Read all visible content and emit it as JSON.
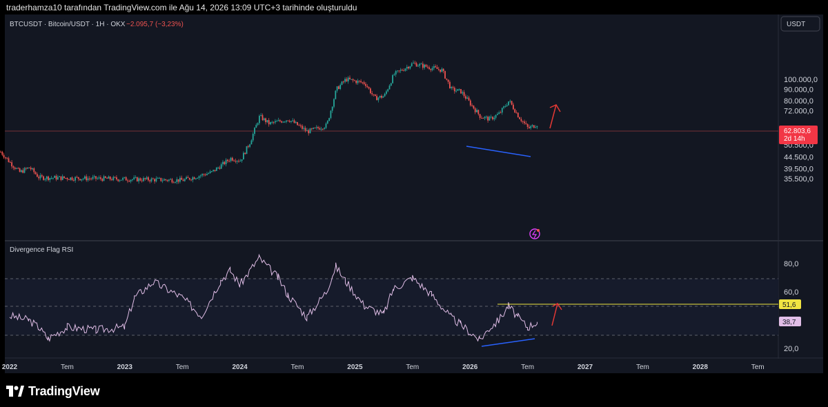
{
  "header": {
    "attribution": "traderhamza10 tarafından TradingView.com ile Ağu 14, 2026 13:09 UTC+3 tarihinde oluşturuldu"
  },
  "chart": {
    "symbol_line": "BTCUSDT · Bitcoin/USDT · 1H · OKX",
    "change": "−2.095,7 (−3,23%)",
    "currency_button": "USDT",
    "price_badge": "62.803,6",
    "countdown": "2d 14h",
    "rsi_title": "Divergence Flag RSI",
    "rsi_badge_yellow": "51,6",
    "rsi_badge_pink": "38,7"
  },
  "footer": {
    "brand": "TradingView"
  },
  "colors": {
    "up": "#26a69a",
    "down": "#ef5350",
    "rsi_line": "#e1bee7",
    "divergence_line": "#2962ff",
    "arrow": "#e53935",
    "level_line": "#f0e442"
  },
  "chart_data": [
    {
      "type": "candlestick",
      "title": "BTCUSDT · Bitcoin/USDT · 1H · OKX",
      "y_scale": "log",
      "y_tick_labels": [
        "100.000,0",
        "90.000,0",
        "80.000,0",
        "72.000,0",
        "56.500,0",
        "50.500,0",
        "44.500,0",
        "39.500,0",
        "35.500,0"
      ],
      "ylim": [
        33500,
        120000
      ],
      "last_price": 62803.6,
      "x_ticks": [
        "2022",
        "Tem",
        "2023",
        "Tem",
        "2024",
        "Tem",
        "2025",
        "Tem",
        "2026",
        "Tem",
        "2027",
        "Tem",
        "2028",
        "Tem"
      ],
      "approx_close_path": [
        {
          "x": "2021-12",
          "y": 47000
        },
        {
          "x": "2022-01",
          "y": 42000
        },
        {
          "x": "2022-02",
          "y": 38000
        },
        {
          "x": "2022-03",
          "y": 40000
        },
        {
          "x": "2022-04",
          "y": 36000
        },
        {
          "x": "2023-07",
          "y": 35000
        },
        {
          "x": "2023-10",
          "y": 38000
        },
        {
          "x": "2023-12",
          "y": 44000
        },
        {
          "x": "2024-01",
          "y": 43000
        },
        {
          "x": "2024-02",
          "y": 52000
        },
        {
          "x": "2024-03",
          "y": 68000
        },
        {
          "x": "2024-04",
          "y": 63000
        },
        {
          "x": "2024-06",
          "y": 66000
        },
        {
          "x": "2024-08",
          "y": 58000
        },
        {
          "x": "2024-10",
          "y": 62000
        },
        {
          "x": "2024-11",
          "y": 90000
        },
        {
          "x": "2024-12",
          "y": 100000
        },
        {
          "x": "2025-02",
          "y": 96000
        },
        {
          "x": "2025-03",
          "y": 82000
        },
        {
          "x": "2025-04",
          "y": 84000
        },
        {
          "x": "2025-05",
          "y": 105000
        },
        {
          "x": "2025-07",
          "y": 118000
        },
        {
          "x": "2025-08",
          "y": 115000
        },
        {
          "x": "2025-10",
          "y": 110000
        },
        {
          "x": "2025-11",
          "y": 90000
        },
        {
          "x": "2025-12",
          "y": 88000
        },
        {
          "x": "2026-02",
          "y": 68000
        },
        {
          "x": "2026-03",
          "y": 66000
        },
        {
          "x": "2026-04",
          "y": 70000
        },
        {
          "x": "2026-05",
          "y": 80000
        },
        {
          "x": "2026-06",
          "y": 68000
        },
        {
          "x": "2026-07",
          "y": 60000
        },
        {
          "x": "2026-08",
          "y": 62803.6
        }
      ]
    },
    {
      "type": "line",
      "title": "Divergence Flag RSI",
      "y_tick_labels": [
        "80,0",
        "60,0",
        "20,0"
      ],
      "ylim": [
        18,
        86
      ],
      "level_lines": [
        30,
        50,
        70
      ],
      "last_values": [
        51.6,
        38.7
      ],
      "approx_path": [
        {
          "x": "2022-01",
          "y": 43
        },
        {
          "x": "2022-03",
          "y": 40
        },
        {
          "x": "2022-04",
          "y": 35
        },
        {
          "x": "2022-05",
          "y": 27
        },
        {
          "x": "2022-07",
          "y": 35
        },
        {
          "x": "2022-10",
          "y": 33
        },
        {
          "x": "2023-01",
          "y": 35
        },
        {
          "x": "2023-02",
          "y": 56
        },
        {
          "x": "2023-04",
          "y": 67
        },
        {
          "x": "2023-07",
          "y": 56
        },
        {
          "x": "2023-09",
          "y": 43
        },
        {
          "x": "2023-11",
          "y": 68
        },
        {
          "x": "2023-12",
          "y": 75
        },
        {
          "x": "2024-01",
          "y": 65
        },
        {
          "x": "2024-03",
          "y": 84
        },
        {
          "x": "2024-05",
          "y": 70
        },
        {
          "x": "2024-06",
          "y": 58
        },
        {
          "x": "2024-08",
          "y": 42
        },
        {
          "x": "2024-10",
          "y": 60
        },
        {
          "x": "2024-11",
          "y": 78
        },
        {
          "x": "2024-12",
          "y": 68
        },
        {
          "x": "2025-02",
          "y": 50
        },
        {
          "x": "2025-04",
          "y": 44
        },
        {
          "x": "2025-05",
          "y": 62
        },
        {
          "x": "2025-07",
          "y": 70
        },
        {
          "x": "2025-09",
          "y": 58
        },
        {
          "x": "2025-11",
          "y": 42
        },
        {
          "x": "2025-12",
          "y": 37
        },
        {
          "x": "2026-02",
          "y": 26
        },
        {
          "x": "2026-03",
          "y": 34
        },
        {
          "x": "2026-04",
          "y": 40
        },
        {
          "x": "2026-05",
          "y": 50
        },
        {
          "x": "2026-06",
          "y": 42
        },
        {
          "x": "2026-07",
          "y": 35
        },
        {
          "x": "2026-08",
          "y": 38.7
        }
      ]
    }
  ]
}
